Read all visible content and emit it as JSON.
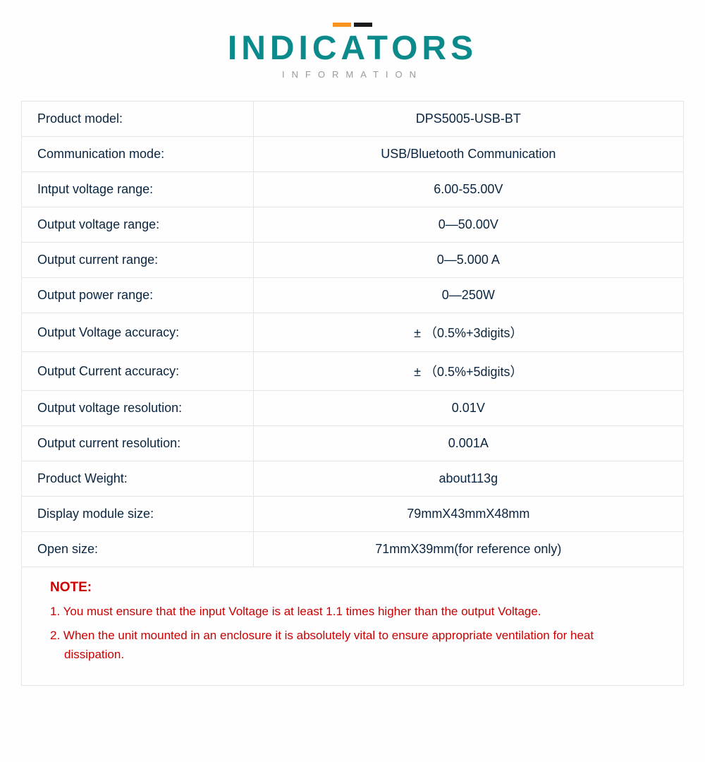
{
  "header": {
    "title": "INDICATORS",
    "subtitle": "INFORMATION",
    "accent_colors": {
      "bar1": "#f7931e",
      "bar2": "#1a1a1a"
    },
    "title_color": "#0a8a8a"
  },
  "table": {
    "border_color": "#e5e5e5",
    "text_color": "#0a2540",
    "rows": [
      {
        "label": "Product model:",
        "value": "DPS5005-USB-BT"
      },
      {
        "label": "Communication mode:",
        "value": "USB/Bluetooth Communication"
      },
      {
        "label": "Intput voltage range:",
        "value": "6.00-55.00V"
      },
      {
        "label": "Output voltage range:",
        "value": "0—50.00V"
      },
      {
        "label": "Output current range:",
        "value": "0—5.000 A"
      },
      {
        "label": "Output power range:",
        "value": "0—250W"
      },
      {
        "label": "Output Voltage accuracy:",
        "value": "± （0.5%+3digits）"
      },
      {
        "label": "Output Current accuracy:",
        "value": "± （0.5%+5digits）"
      },
      {
        "label": "Output voltage resolution:",
        "value": "0.01V"
      },
      {
        "label": "Output current resolution:",
        "value": "0.001A"
      },
      {
        "label": "Product Weight:",
        "value": "about113g"
      },
      {
        "label": "Display module size:",
        "value": "79mmX43mmX48mm"
      },
      {
        "label": "Open size:",
        "value": "71mmX39mm(for reference only)"
      }
    ]
  },
  "notes": {
    "title": "NOTE:",
    "color": "#cc0000",
    "items": [
      "1. You must ensure that the input Voltage is at least 1.1 times higher than the output Voltage.",
      "2. When the unit mounted in an enclosure it is absolutely vital to ensure appropriate ventilation for heat dissipation."
    ]
  }
}
